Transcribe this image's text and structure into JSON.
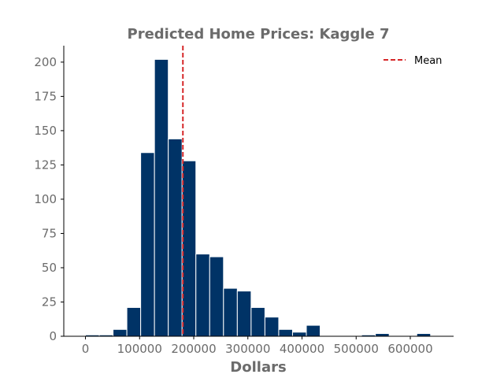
{
  "chart_data": {
    "type": "bar",
    "title": "Predicted Home Prices: Kaggle 7",
    "xlabel": "Dollars",
    "ylabel": "",
    "xlim": [
      -40000,
      680000
    ],
    "ylim": [
      0,
      212
    ],
    "bin_width": 25500,
    "bins": [
      {
        "x0": 0,
        "x1": 25500,
        "count": 1
      },
      {
        "x0": 25500,
        "x1": 51000,
        "count": 1
      },
      {
        "x0": 51000,
        "x1": 76500,
        "count": 5
      },
      {
        "x0": 76500,
        "x1": 102000,
        "count": 21
      },
      {
        "x0": 102000,
        "x1": 127500,
        "count": 134
      },
      {
        "x0": 127500,
        "x1": 153000,
        "count": 202
      },
      {
        "x0": 153000,
        "x1": 178500,
        "count": 144
      },
      {
        "x0": 178500,
        "x1": 204000,
        "count": 128
      },
      {
        "x0": 204000,
        "x1": 229500,
        "count": 60
      },
      {
        "x0": 229500,
        "x1": 255000,
        "count": 58
      },
      {
        "x0": 255000,
        "x1": 280500,
        "count": 35
      },
      {
        "x0": 280500,
        "x1": 306000,
        "count": 33
      },
      {
        "x0": 306000,
        "x1": 331500,
        "count": 21
      },
      {
        "x0": 331500,
        "x1": 357000,
        "count": 14
      },
      {
        "x0": 357000,
        "x1": 382500,
        "count": 5
      },
      {
        "x0": 382500,
        "x1": 408000,
        "count": 3
      },
      {
        "x0": 408000,
        "x1": 433500,
        "count": 8
      },
      {
        "x0": 433500,
        "x1": 459000,
        "count": 0
      },
      {
        "x0": 459000,
        "x1": 484500,
        "count": 0
      },
      {
        "x0": 484500,
        "x1": 510000,
        "count": 0
      },
      {
        "x0": 510000,
        "x1": 535500,
        "count": 1
      },
      {
        "x0": 535500,
        "x1": 561000,
        "count": 2
      },
      {
        "x0": 561000,
        "x1": 586500,
        "count": 0
      },
      {
        "x0": 586500,
        "x1": 612000,
        "count": 0
      },
      {
        "x0": 612000,
        "x1": 637500,
        "count": 2
      }
    ],
    "mean": 180000,
    "mean_label": "Mean",
    "x_ticks": [
      {
        "value": 0,
        "label": "0"
      },
      {
        "value": 100000,
        "label": "100000"
      },
      {
        "value": 200000,
        "label": "200000"
      },
      {
        "value": 300000,
        "label": "300000"
      },
      {
        "value": 400000,
        "label": "400000"
      },
      {
        "value": 500000,
        "label": "500000"
      },
      {
        "value": 600000,
        "label": "600000"
      }
    ],
    "y_ticks": [
      {
        "value": 0,
        "label": "0"
      },
      {
        "value": 25,
        "label": "25"
      },
      {
        "value": 50,
        "label": "50"
      },
      {
        "value": 75,
        "label": "75"
      },
      {
        "value": 100,
        "label": "100"
      },
      {
        "value": 125,
        "label": "125"
      },
      {
        "value": 150,
        "label": "150"
      },
      {
        "value": 175,
        "label": "175"
      },
      {
        "value": 200,
        "label": "200"
      }
    ],
    "grid": false,
    "legend_position": "top-right",
    "colors": {
      "bar_fill": "#003366",
      "bar_edge": "#ffffff",
      "mean_line": "#d62728",
      "text": "#6b6b6b",
      "axis": "#000000"
    }
  }
}
